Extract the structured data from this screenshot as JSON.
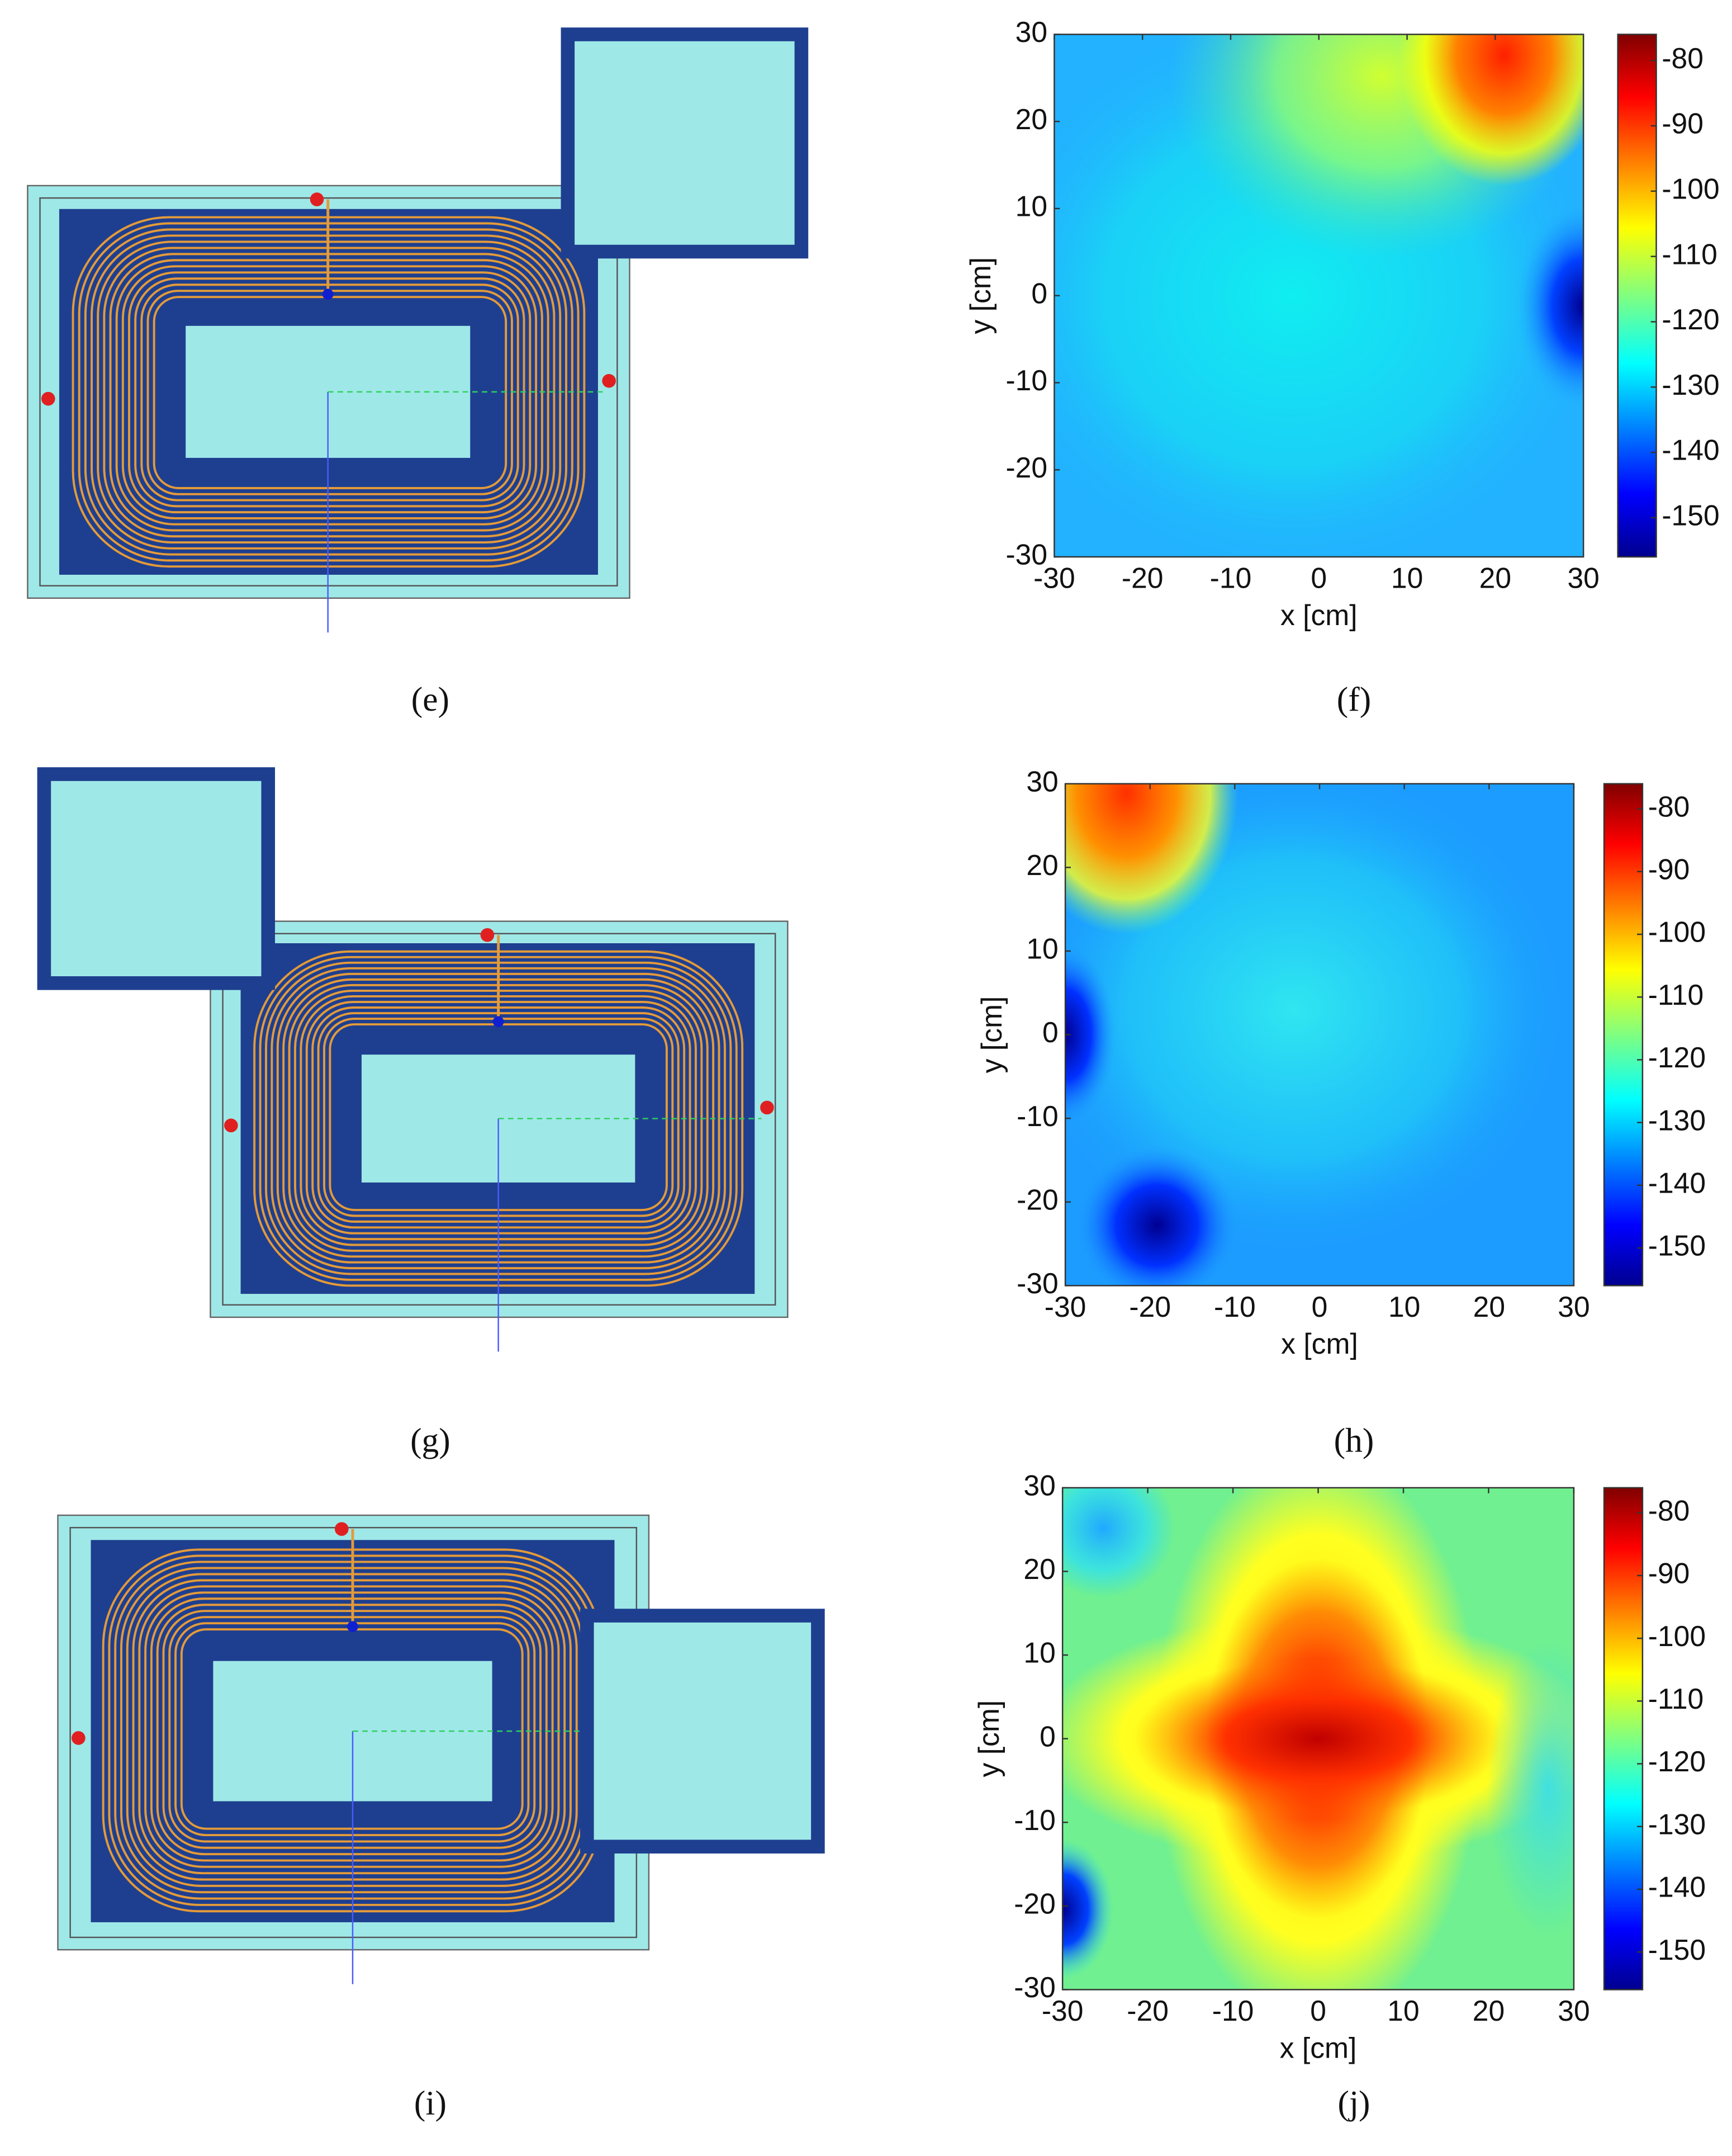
{
  "diagrams": [
    {
      "caption": "(e)"
    },
    {
      "caption": "(g)"
    },
    {
      "caption": "(i)"
    }
  ],
  "chart_data": [
    {
      "type": "heatmap",
      "caption": "(f)",
      "xlabel": "x [cm]",
      "ylabel": "y [cm]",
      "xlim": [
        -30,
        30
      ],
      "ylim": [
        -30,
        30
      ],
      "xticks": [
        -30,
        -20,
        -10,
        0,
        10,
        20,
        30
      ],
      "yticks": [
        -30,
        -20,
        -10,
        0,
        10,
        20,
        30
      ],
      "clim": [
        -156,
        -76
      ],
      "cticks": [
        -80,
        -90,
        -100,
        -110,
        -120,
        -130,
        -140,
        -150
      ]
    },
    {
      "type": "heatmap",
      "caption": "(h)",
      "xlabel": "x [cm]",
      "ylabel": "y [cm]",
      "xlim": [
        -30,
        30
      ],
      "ylim": [
        -30,
        30
      ],
      "xticks": [
        -30,
        -20,
        -10,
        0,
        10,
        20,
        30
      ],
      "yticks": [
        -30,
        -20,
        -10,
        0,
        10,
        20,
        30
      ],
      "clim": [
        -156,
        -76
      ],
      "cticks": [
        -80,
        -90,
        -100,
        -110,
        -120,
        -130,
        -140,
        -150
      ]
    },
    {
      "type": "heatmap",
      "caption": "(j)",
      "xlabel": "x [cm]",
      "ylabel": "y [cm]",
      "xlim": [
        -30,
        30
      ],
      "ylim": [
        -30,
        30
      ],
      "xticks": [
        -30,
        -20,
        -10,
        0,
        10,
        20,
        30
      ],
      "yticks": [
        -30,
        -20,
        -10,
        0,
        10,
        20,
        30
      ],
      "clim": [
        -156,
        -76
      ],
      "cticks": [
        -80,
        -90,
        -100,
        -110,
        -120,
        -130,
        -140,
        -150
      ]
    }
  ]
}
